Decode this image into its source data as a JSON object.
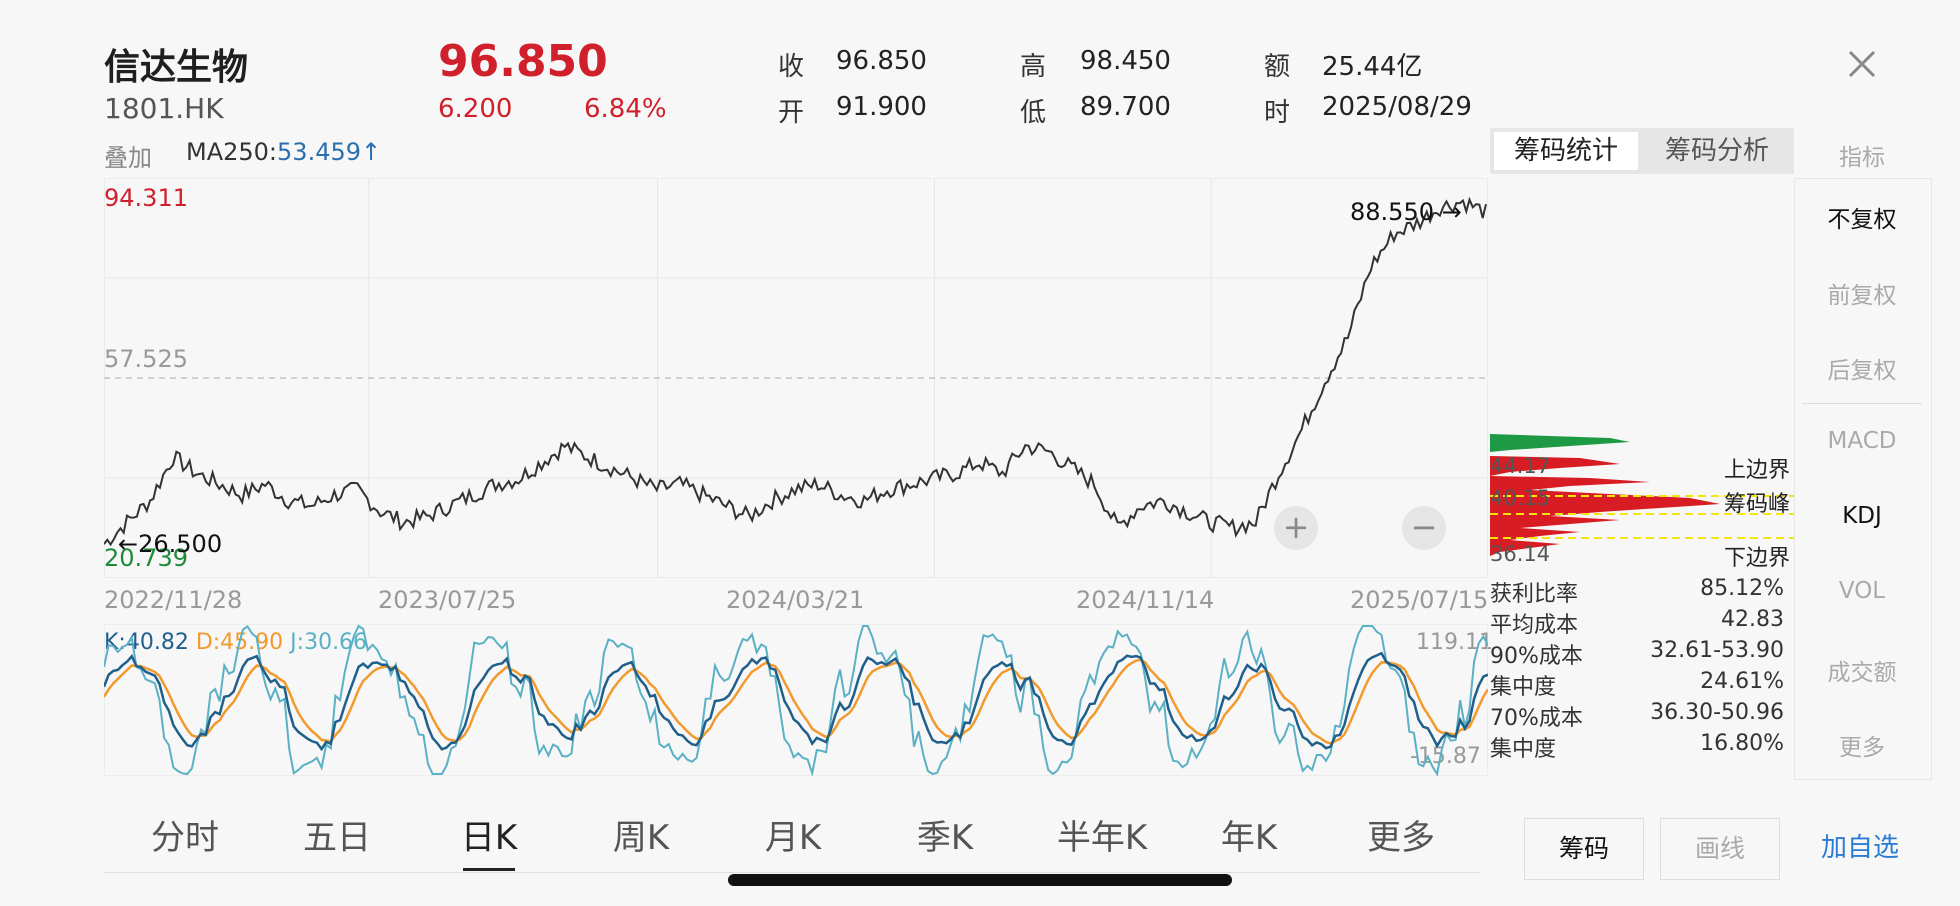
{
  "header": {
    "name": "信达生物",
    "code": "1801.HK",
    "price": "96.850",
    "change": "6.200",
    "change_pct": "6.84%",
    "quote": [
      {
        "label": "收",
        "value": "96.850"
      },
      {
        "label": "开",
        "value": "91.900"
      },
      {
        "label": "高",
        "value": "98.450"
      },
      {
        "label": "低",
        "value": "89.700"
      },
      {
        "label": "额",
        "value": "25.44亿"
      },
      {
        "label": "时",
        "value": "2025/08/29"
      }
    ]
  },
  "overlay": {
    "label": "叠加",
    "ma_label": "MA250:",
    "ma_value": "53.459↑"
  },
  "main_chart": {
    "y_top": "94.311",
    "y_mid": "57.525",
    "y_bottom": "20.739",
    "high_annot": "88.550 →",
    "low_annot": "←26.500",
    "x_ticks": [
      "2022/11/28",
      "2023/07/25",
      "2024/03/21",
      "2024/11/14",
      "2025/07/15"
    ],
    "zoom_in": "+",
    "zoom_out": "−"
  },
  "chart_data": [
    {
      "type": "line",
      "ylim": [
        20.739,
        94.311
      ],
      "x_ticks": [
        "2022/11/28",
        "2023/07/25",
        "2024/03/21",
        "2024/11/14",
        "2025/07/15"
      ],
      "reference_line": 57.525,
      "series": [
        {
          "values": [
            27,
            31,
            35,
            43,
            40,
            38,
            36,
            38,
            35,
            34,
            36,
            37,
            33,
            31,
            32,
            34,
            36,
            38,
            39,
            42,
            45,
            43,
            41,
            39,
            37,
            38,
            36,
            34,
            32,
            35,
            37,
            38,
            36,
            35,
            37,
            38,
            39,
            40,
            42,
            40,
            45,
            44,
            41,
            38,
            30,
            34,
            35,
            33,
            31,
            30,
            31,
            40,
            48,
            57,
            65,
            78,
            84,
            86,
            89,
            90,
            88
          ]
        }
      ],
      "annotations": {
        "high": "88.550",
        "low": "26.500"
      }
    },
    {
      "type": "line",
      "ylim": [
        -15.87,
        119.11
      ],
      "series": [
        {
          "name": "K",
          "value": 40.82
        },
        {
          "name": "D",
          "value": 45.9
        },
        {
          "name": "J",
          "value": 30.66
        }
      ]
    }
  ],
  "kdj": {
    "k": "K:40.82",
    "d": "D:45.90",
    "j": "J:30.66",
    "top": "119.11",
    "bottom": "-15.87",
    "colors": {
      "k": "#1f5f8b",
      "d": "#f29a2e",
      "j": "#5ab0c4"
    }
  },
  "chips": {
    "tabs": [
      "筹码统计",
      "筹码分析"
    ],
    "labels": {
      "upper": "上边界",
      "peak": "筹码峰",
      "lower": "下边界"
    },
    "prices": {
      "upper": "44.17",
      "peak": "40.15",
      "lower": "36.14"
    },
    "stats": [
      {
        "label": "获利比率",
        "value": "85.12%"
      },
      {
        "label": "平均成本",
        "value": "42.83"
      },
      {
        "label": "90%成本",
        "value": "32.61-53.90"
      },
      {
        "label": "集中度",
        "value": "24.61%"
      },
      {
        "label": "70%成本",
        "value": "36.30-50.96"
      },
      {
        "label": "集中度",
        "value": "16.80%"
      }
    ]
  },
  "sidebar": {
    "title": "指标",
    "items": [
      "不复权",
      "前复权",
      "后复权",
      "MACD",
      "KDJ",
      "VOL",
      "成交额",
      "更多"
    ],
    "active": [
      "不复权",
      "KDJ"
    ]
  },
  "periods": {
    "items": [
      "分时",
      "五日",
      "日K",
      "周K",
      "月K",
      "季K",
      "半年K",
      "年K",
      "更多"
    ],
    "active": "日K"
  },
  "bottom_buttons": {
    "chips": "筹码",
    "draw": "画线",
    "watch": "加自选"
  },
  "colors": {
    "up": "#d0202b",
    "down": "#1e8a3a",
    "accent": "#2a7bd4",
    "line": "#333333"
  }
}
